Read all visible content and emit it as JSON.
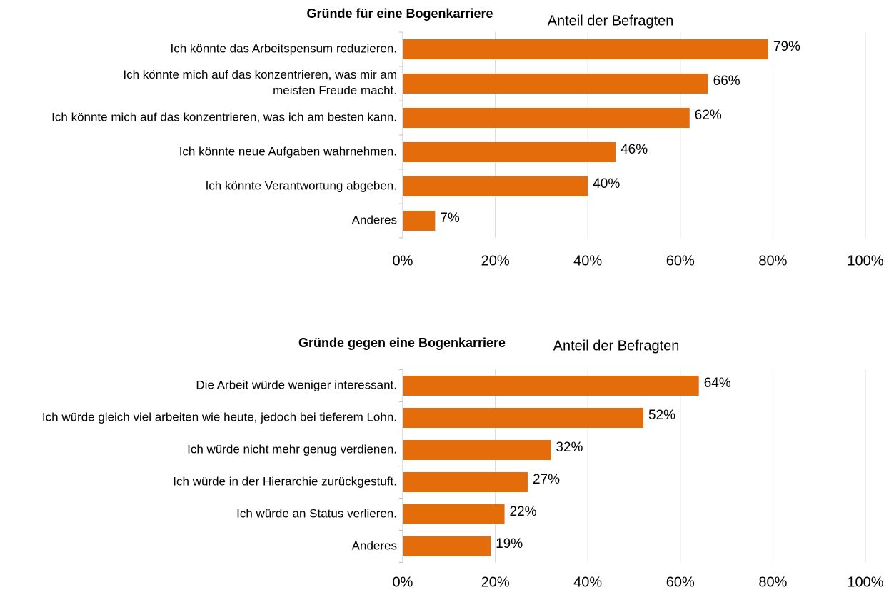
{
  "chart_data": [
    {
      "type": "bar",
      "orientation": "horizontal",
      "title": "Gründe für eine Bogenkarriere",
      "subtitle": "Anteil der Befragten",
      "categories": [
        "Ich könnte das Arbeitspensum reduzieren.",
        "Ich könnte mich auf das konzentrieren, was mir am\nmeisten Freude macht.",
        "Ich könnte mich auf das konzentrieren, was ich am besten kann.",
        "Ich könnte neue Aufgaben wahrnehmen.",
        "Ich könnte Verantwortung abgeben.",
        "Anderes"
      ],
      "values": [
        79,
        66,
        62,
        46,
        40,
        7
      ],
      "value_labels": [
        "79%",
        "66%",
        "62%",
        "46%",
        "40%",
        "7%"
      ],
      "color": "#e46c0a",
      "xlim": [
        0,
        100
      ],
      "xticks": [
        {
          "value": 0,
          "label": "0%"
        },
        {
          "value": 20,
          "label": "20%"
        },
        {
          "value": 40,
          "label": "40%"
        },
        {
          "value": 60,
          "label": "60%"
        },
        {
          "value": 80,
          "label": "80%"
        },
        {
          "value": 100,
          "label": "100%"
        }
      ],
      "grid": true
    },
    {
      "type": "bar",
      "orientation": "horizontal",
      "title": "Gründe gegen eine Bogenkarriere",
      "subtitle": "Anteil der Befragten",
      "categories": [
        "Die Arbeit würde weniger interessant.",
        "Ich würde gleich viel arbeiten wie heute, jedoch bei tieferem Lohn.",
        "Ich würde nicht mehr genug verdienen.",
        "Ich würde in der Hierarchie zurückgestuft.",
        "Ich würde an Status verlieren.",
        "Anderes"
      ],
      "values": [
        64,
        52,
        32,
        27,
        22,
        19
      ],
      "value_labels": [
        "64%",
        "52%",
        "32%",
        "27%",
        "22%",
        "19%"
      ],
      "color": "#e46c0a",
      "xlim": [
        0,
        100
      ],
      "xticks": [
        {
          "value": 0,
          "label": "0%"
        },
        {
          "value": 20,
          "label": "20%"
        },
        {
          "value": 40,
          "label": "40%"
        },
        {
          "value": 60,
          "label": "60%"
        },
        {
          "value": 80,
          "label": "80%"
        },
        {
          "value": 100,
          "label": "100%"
        }
      ],
      "grid": true
    }
  ]
}
